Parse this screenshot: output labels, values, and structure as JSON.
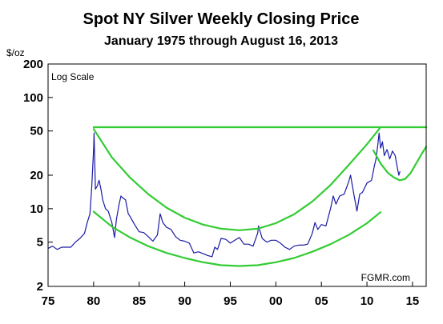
{
  "chart_data": {
    "type": "line",
    "title": "Spot NY Silver Weekly Closing Price",
    "subtitle": "January 1975 through August 16, 2013",
    "ylabel": "$/oz",
    "scale_label": "Log Scale",
    "source": "FGMR.com",
    "y_scale": "log",
    "xlim": [
      1975,
      2016.5
    ],
    "ylim": [
      2,
      200
    ],
    "x_ticks": [
      {
        "value": 1975,
        "label": "75"
      },
      {
        "value": 1980,
        "label": "80"
      },
      {
        "value": 1985,
        "label": "85"
      },
      {
        "value": 1990,
        "label": "90"
      },
      {
        "value": 1995,
        "label": "95"
      },
      {
        "value": 2000,
        "label": "00"
      },
      {
        "value": 2005,
        "label": "05"
      },
      {
        "value": 2010,
        "label": "10"
      },
      {
        "value": 2015,
        "label": "15"
      }
    ],
    "y_ticks": [
      {
        "value": 2,
        "label": "2"
      },
      {
        "value": 5,
        "label": "5"
      },
      {
        "value": 10,
        "label": "10"
      },
      {
        "value": 20,
        "label": "20"
      },
      {
        "value": 50,
        "label": "50"
      },
      {
        "value": 100,
        "label": "100"
      },
      {
        "value": 200,
        "label": "200"
      }
    ],
    "grid": false,
    "colors": {
      "price": "#1a1aa6",
      "trend": "#33cc33",
      "frame": "#000000"
    },
    "series": [
      {
        "kind": "price",
        "x": [
          1975.0,
          1975.5,
          1976.0,
          1976.5,
          1977.0,
          1977.5,
          1978.0,
          1978.5,
          1979.0,
          1979.3,
          1979.6,
          1979.8,
          1980.0,
          1980.05,
          1980.2,
          1980.4,
          1980.6,
          1980.8,
          1981.0,
          1981.3,
          1981.6,
          1982.0,
          1982.3,
          1982.5,
          1982.8,
          1983.0,
          1983.2,
          1983.5,
          1983.8,
          1984.0,
          1984.5,
          1985.0,
          1985.5,
          1986.0,
          1986.5,
          1987.0,
          1987.3,
          1987.6,
          1988.0,
          1988.5,
          1989.0,
          1989.5,
          1990.0,
          1990.5,
          1991.0,
          1991.5,
          1992.0,
          1992.5,
          1993.0,
          1993.3,
          1993.6,
          1994.0,
          1994.5,
          1995.0,
          1995.5,
          1996.0,
          1996.5,
          1997.0,
          1997.5,
          1998.0,
          1998.1,
          1998.5,
          1999.0,
          1999.5,
          2000.0,
          2000.5,
          2001.0,
          2001.5,
          2002.0,
          2002.5,
          2003.0,
          2003.5,
          2004.0,
          2004.3,
          2004.6,
          2005.0,
          2005.5,
          2006.0,
          2006.3,
          2006.6,
          2007.0,
          2007.5,
          2008.0,
          2008.2,
          2008.6,
          2008.9,
          2009.2,
          2009.5,
          2010.0,
          2010.5,
          2010.8,
          2011.0,
          2011.2,
          2011.33,
          2011.5,
          2011.7,
          2011.9,
          2012.2,
          2012.5,
          2012.8,
          2013.1,
          2013.35,
          2013.5,
          2013.62
        ],
        "y": [
          4.4,
          4.6,
          4.3,
          4.5,
          4.5,
          4.5,
          5.0,
          5.4,
          6.0,
          7.5,
          9.0,
          16.0,
          35.0,
          48.0,
          15.0,
          16.0,
          18.0,
          15.0,
          12.0,
          10.0,
          9.5,
          7.5,
          5.5,
          8.0,
          11.0,
          13.0,
          12.5,
          12.0,
          9.0,
          8.5,
          7.2,
          6.2,
          6.1,
          5.6,
          5.1,
          5.8,
          9.0,
          7.5,
          6.8,
          6.5,
          5.6,
          5.2,
          5.1,
          4.9,
          4.0,
          4.1,
          3.95,
          3.8,
          3.7,
          4.5,
          4.3,
          5.4,
          5.3,
          4.9,
          5.2,
          5.5,
          4.8,
          4.8,
          4.6,
          6.0,
          7.0,
          5.4,
          5.0,
          5.2,
          5.2,
          4.9,
          4.5,
          4.3,
          4.6,
          4.7,
          4.7,
          4.8,
          6.0,
          7.5,
          6.5,
          7.2,
          7.0,
          10.0,
          13.0,
          11.0,
          13.0,
          13.5,
          17.5,
          20.0,
          13.0,
          9.5,
          13.5,
          14.0,
          17.0,
          18.0,
          24.0,
          28.0,
          38.0,
          48.0,
          35.0,
          40.0,
          30.0,
          34.0,
          28.0,
          33.0,
          30.0,
          23.0,
          20.0,
          21.5
        ]
      },
      {
        "kind": "trend",
        "x": [
          1980.0,
          2016.5
        ],
        "y": [
          54.0,
          54.0
        ]
      },
      {
        "kind": "trend",
        "x": [
          1980.0,
          1982.0,
          1984.0,
          1986.0,
          1988.0,
          1990.0,
          1992.0,
          1994.0,
          1996.0,
          1998.0,
          2000.0,
          2002.0,
          2004.0,
          2006.0,
          2008.0,
          2010.0,
          2011.5
        ],
        "y": [
          52.0,
          29.0,
          19.0,
          13.5,
          10.2,
          8.3,
          7.2,
          6.6,
          6.4,
          6.6,
          7.4,
          8.9,
          11.6,
          16.3,
          24.7,
          38.0,
          54.0
        ]
      },
      {
        "kind": "trend",
        "x": [
          1980.0,
          1982.0,
          1984.0,
          1986.0,
          1988.0,
          1990.0,
          1992.0,
          1994.0,
          1996.0,
          1998.0,
          2000.0,
          2002.0,
          2004.0,
          2006.0,
          2008.0,
          2010.0,
          2011.5
        ],
        "y": [
          9.4,
          6.9,
          5.5,
          4.6,
          4.0,
          3.6,
          3.3,
          3.1,
          3.05,
          3.1,
          3.3,
          3.6,
          4.1,
          4.8,
          5.8,
          7.4,
          9.3
        ]
      },
      {
        "kind": "trend",
        "x": [
          2010.7,
          2011.5,
          2012.3,
          2013.0,
          2013.6,
          2014.2,
          2014.8,
          2015.4,
          2016.0,
          2016.5
        ],
        "y": [
          33.5,
          25.5,
          21.0,
          19.0,
          18.0,
          18.5,
          21.0,
          25.5,
          31.0,
          36.0
        ]
      }
    ]
  }
}
